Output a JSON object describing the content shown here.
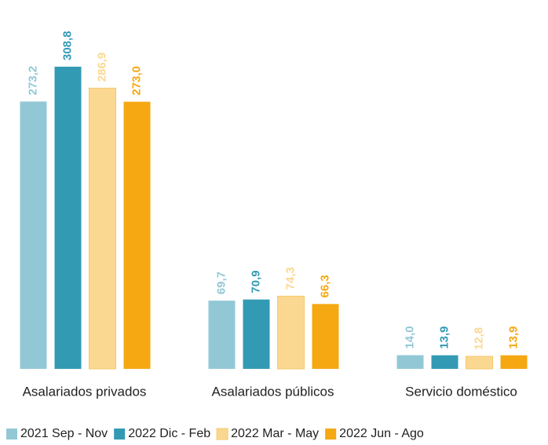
{
  "chart_data": {
    "type": "bar",
    "categories": [
      "Asalariados privados",
      "Asalariados públicos",
      "Servicio doméstico"
    ],
    "series": [
      {
        "name": "2021 Sep - Nov",
        "color": "#92c8d6",
        "values": [
          273.2,
          69.7,
          14.0
        ],
        "value_labels": [
          "273,2",
          "69,7",
          "14,0"
        ]
      },
      {
        "name": "2022 Dic - Feb",
        "color": "#339ab4",
        "values": [
          308.8,
          70.9,
          13.9
        ],
        "value_labels": [
          "308,8",
          "70,9",
          "13,9"
        ]
      },
      {
        "name": "2022 Mar - May",
        "color": "#fbd891",
        "values": [
          286.9,
          74.3,
          12.8
        ],
        "value_labels": [
          "286,9",
          "74,3",
          "12,8"
        ]
      },
      {
        "name": "2022 Jun - Ago",
        "color": "#f5a812",
        "values": [
          273.0,
          66.3,
          13.9
        ],
        "value_labels": [
          "273,0",
          "66,3",
          "13,9"
        ]
      }
    ]
  }
}
